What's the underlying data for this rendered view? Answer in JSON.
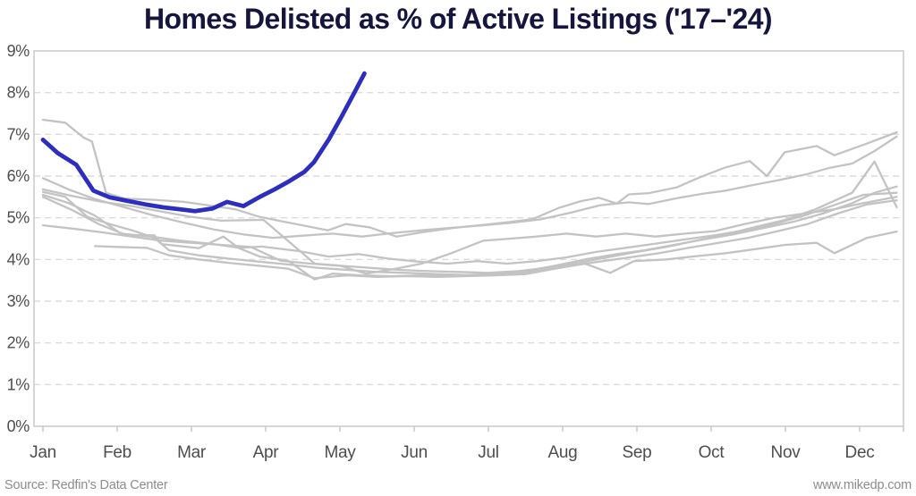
{
  "title": "Homes Delisted as % of Active Listings ('17–'24)",
  "footer": {
    "source": "Source: Redfin's Data Center",
    "website": "www.mikedp.com"
  },
  "colors": {
    "title": "#15153e",
    "highlight_line": "#2d2dbe",
    "context_line": "#c3c3c3",
    "gridline": "#dcdcdc",
    "plot_border": "#c9c9c9",
    "axis_text": "#4d4d4d",
    "tick": "#c9c9c9",
    "footer_text": "#8c8c8c",
    "background": "#ffffff"
  },
  "chart_data": {
    "type": "line",
    "title": "Homes Delisted as % of Active Listings ('17–'24)",
    "xlabel": "",
    "ylabel": "",
    "x_axis": {
      "categories": [
        "Jan",
        "Feb",
        "Mar",
        "Apr",
        "May",
        "Jun",
        "Jul",
        "Aug",
        "Sep",
        "Oct",
        "Nov",
        "Dec"
      ],
      "unit": "month"
    },
    "y_axis": {
      "min": 0,
      "max": 9,
      "tick_labels": [
        "0%",
        "1%",
        "2%",
        "3%",
        "4%",
        "5%",
        "6%",
        "7%",
        "8%",
        "9%"
      ],
      "format": "percent"
    },
    "grid": "horizontal-dashed",
    "legend": "none",
    "series": [
      {
        "name": "gray-line-1",
        "role": "context",
        "points": [
          [
            0,
            7.35
          ],
          [
            0.3,
            7.28
          ],
          [
            0.55,
            6.92
          ],
          [
            0.66,
            6.83
          ],
          [
            0.85,
            5.6
          ],
          [
            1.1,
            5.46
          ],
          [
            1.5,
            5.43
          ],
          [
            1.9,
            5.38
          ],
          [
            2.3,
            5.28
          ],
          [
            2.6,
            5.2
          ],
          [
            2.9,
            5.03
          ],
          [
            3.2,
            4.92
          ],
          [
            3.55,
            4.8
          ],
          [
            3.84,
            4.7
          ],
          [
            4.08,
            4.85
          ],
          [
            4.4,
            4.77
          ],
          [
            4.76,
            4.55
          ],
          [
            5.1,
            4.65
          ],
          [
            5.5,
            4.75
          ],
          [
            5.93,
            4.83
          ],
          [
            6.3,
            4.9
          ],
          [
            6.6,
            4.97
          ],
          [
            6.95,
            5.24
          ],
          [
            7.25,
            5.4
          ],
          [
            7.49,
            5.48
          ],
          [
            7.73,
            5.34
          ],
          [
            7.89,
            5.56
          ],
          [
            8.16,
            5.59
          ],
          [
            8.54,
            5.73
          ],
          [
            8.82,
            5.95
          ],
          [
            9.18,
            6.2
          ],
          [
            9.52,
            6.36
          ],
          [
            9.75,
            6.0
          ],
          [
            9.99,
            6.57
          ],
          [
            10.42,
            6.72
          ],
          [
            10.66,
            6.5
          ],
          [
            11.1,
            6.78
          ],
          [
            11.5,
            7.05
          ]
        ]
      },
      {
        "name": "gray-line-2",
        "role": "context",
        "points": [
          [
            0,
            5.95
          ],
          [
            0.36,
            5.67
          ],
          [
            0.7,
            5.45
          ],
          [
            1.1,
            5.25
          ],
          [
            1.5,
            5.05
          ],
          [
            1.9,
            4.88
          ],
          [
            2.3,
            4.72
          ],
          [
            2.7,
            4.6
          ],
          [
            3.1,
            4.52
          ],
          [
            3.5,
            4.57
          ],
          [
            3.9,
            4.62
          ],
          [
            4.3,
            4.55
          ],
          [
            4.7,
            4.63
          ],
          [
            5.1,
            4.7
          ],
          [
            5.5,
            4.76
          ],
          [
            5.93,
            4.82
          ],
          [
            6.3,
            4.88
          ],
          [
            6.7,
            4.96
          ],
          [
            7.1,
            5.12
          ],
          [
            7.5,
            5.3
          ],
          [
            7.89,
            5.37
          ],
          [
            8.16,
            5.33
          ],
          [
            8.54,
            5.47
          ],
          [
            8.9,
            5.58
          ],
          [
            9.2,
            5.65
          ],
          [
            9.55,
            5.78
          ],
          [
            9.9,
            5.9
          ],
          [
            10.3,
            6.05
          ],
          [
            10.6,
            6.2
          ],
          [
            10.9,
            6.3
          ],
          [
            11.2,
            6.6
          ],
          [
            11.5,
            6.95
          ]
        ]
      },
      {
        "name": "gray-line-3",
        "role": "context",
        "points": [
          [
            0,
            5.68
          ],
          [
            0.4,
            5.52
          ],
          [
            0.8,
            5.38
          ],
          [
            1.2,
            5.28
          ],
          [
            1.6,
            5.15
          ],
          [
            2.0,
            5.02
          ],
          [
            2.4,
            4.93
          ],
          [
            2.97,
            4.95
          ],
          [
            3.66,
            3.9
          ],
          [
            4.0,
            3.85
          ],
          [
            4.4,
            3.8
          ],
          [
            4.8,
            3.75
          ],
          [
            5.2,
            3.72
          ],
          [
            5.6,
            3.7
          ],
          [
            6.0,
            3.68
          ],
          [
            6.4,
            3.72
          ],
          [
            6.8,
            3.8
          ],
          [
            7.2,
            3.92
          ],
          [
            7.6,
            4.05
          ],
          [
            8.0,
            4.18
          ],
          [
            8.4,
            4.3
          ],
          [
            8.8,
            4.45
          ],
          [
            9.2,
            4.6
          ],
          [
            9.6,
            4.78
          ],
          [
            10.0,
            4.95
          ],
          [
            10.4,
            5.2
          ],
          [
            10.9,
            5.6
          ],
          [
            11.2,
            6.35
          ],
          [
            11.5,
            5.25
          ]
        ]
      },
      {
        "name": "gray-line-4",
        "role": "context",
        "points": [
          [
            0,
            5.55
          ],
          [
            0.35,
            5.35
          ],
          [
            0.7,
            5.05
          ],
          [
            1.05,
            4.62
          ],
          [
            1.45,
            4.55
          ],
          [
            1.85,
            4.45
          ],
          [
            2.25,
            4.38
          ],
          [
            2.65,
            4.28
          ],
          [
            2.95,
            4.31
          ],
          [
            3.45,
            4.2
          ],
          [
            3.85,
            4.07
          ],
          [
            4.25,
            4.13
          ],
          [
            4.65,
            4.02
          ],
          [
            5.05,
            3.95
          ],
          [
            5.45,
            3.9
          ],
          [
            5.85,
            3.96
          ],
          [
            6.25,
            3.9
          ],
          [
            6.65,
            3.96
          ],
          [
            7.05,
            4.05
          ],
          [
            7.45,
            4.18
          ],
          [
            7.85,
            4.28
          ],
          [
            8.25,
            4.38
          ],
          [
            8.65,
            4.48
          ],
          [
            9.05,
            4.58
          ],
          [
            9.45,
            4.7
          ],
          [
            9.85,
            4.85
          ],
          [
            10.25,
            5.05
          ],
          [
            10.65,
            5.3
          ],
          [
            11.05,
            5.55
          ],
          [
            11.5,
            5.6
          ]
        ]
      },
      {
        "name": "gray-line-5",
        "role": "context",
        "points": [
          [
            0,
            5.5
          ],
          [
            0.4,
            5.18
          ],
          [
            0.75,
            4.85
          ],
          [
            1.13,
            4.58
          ],
          [
            1.5,
            4.58
          ],
          [
            1.6,
            4.37
          ],
          [
            2.1,
            4.27
          ],
          [
            2.43,
            4.55
          ],
          [
            2.64,
            4.27
          ],
          [
            2.92,
            4.07
          ],
          [
            3.3,
            3.97
          ],
          [
            3.66,
            3.52
          ],
          [
            3.9,
            3.66
          ],
          [
            4.3,
            3.62
          ],
          [
            4.7,
            3.6
          ],
          [
            5.1,
            3.62
          ],
          [
            5.5,
            3.6
          ],
          [
            5.9,
            3.63
          ],
          [
            6.3,
            3.66
          ],
          [
            6.7,
            3.73
          ],
          [
            7.1,
            3.85
          ],
          [
            7.5,
            3.95
          ],
          [
            7.9,
            4.05
          ],
          [
            8.3,
            4.15
          ],
          [
            8.7,
            4.28
          ],
          [
            9.1,
            4.4
          ],
          [
            9.5,
            4.52
          ],
          [
            9.9,
            4.68
          ],
          [
            10.3,
            4.85
          ],
          [
            10.7,
            5.1
          ],
          [
            11.1,
            5.32
          ],
          [
            11.5,
            5.42
          ]
        ]
      },
      {
        "name": "gray-line-6",
        "role": "context",
        "points": [
          [
            0,
            4.82
          ],
          [
            0.4,
            4.74
          ],
          [
            0.8,
            4.65
          ],
          [
            1.2,
            4.55
          ],
          [
            1.6,
            4.45
          ],
          [
            2.0,
            4.4
          ],
          [
            2.4,
            4.35
          ],
          [
            2.8,
            4.3
          ],
          [
            3.2,
            3.97
          ],
          [
            3.6,
            3.9
          ],
          [
            4.0,
            3.85
          ],
          [
            4.35,
            3.66
          ],
          [
            4.7,
            3.76
          ],
          [
            5.1,
            3.9
          ],
          [
            5.5,
            4.15
          ],
          [
            5.93,
            4.45
          ],
          [
            6.3,
            4.5
          ],
          [
            6.65,
            4.55
          ],
          [
            7.05,
            4.62
          ],
          [
            7.45,
            4.55
          ],
          [
            7.85,
            4.62
          ],
          [
            8.25,
            4.55
          ],
          [
            8.65,
            4.62
          ],
          [
            9.05,
            4.68
          ],
          [
            9.45,
            4.85
          ],
          [
            9.85,
            5.0
          ],
          [
            10.25,
            5.1
          ],
          [
            10.65,
            5.2
          ],
          [
            11.05,
            5.35
          ],
          [
            11.5,
            5.5
          ]
        ]
      },
      {
        "name": "gray-line-7",
        "role": "context",
        "points": [
          [
            0.7,
            4.32
          ],
          [
            1.0,
            4.3
          ],
          [
            1.4,
            4.28
          ],
          [
            1.7,
            4.1
          ],
          [
            2.1,
            4.0
          ],
          [
            2.5,
            3.92
          ],
          [
            2.9,
            3.85
          ],
          [
            3.3,
            3.78
          ],
          [
            3.66,
            3.55
          ],
          [
            4.1,
            3.62
          ],
          [
            4.5,
            3.58
          ],
          [
            4.9,
            3.6
          ],
          [
            5.3,
            3.58
          ],
          [
            5.7,
            3.6
          ],
          [
            6.1,
            3.62
          ],
          [
            6.5,
            3.65
          ],
          [
            6.9,
            3.78
          ],
          [
            7.3,
            3.9
          ],
          [
            7.64,
            3.68
          ],
          [
            7.96,
            3.96
          ],
          [
            8.4,
            4.0
          ],
          [
            8.8,
            4.08
          ],
          [
            9.2,
            4.15
          ],
          [
            9.6,
            4.25
          ],
          [
            10.0,
            4.35
          ],
          [
            10.42,
            4.4
          ],
          [
            10.66,
            4.15
          ],
          [
            11.1,
            4.52
          ],
          [
            11.5,
            4.67
          ]
        ]
      },
      {
        "name": "gray-line-8",
        "role": "context",
        "points": [
          [
            0,
            5.62
          ],
          [
            0.3,
            5.5
          ],
          [
            0.6,
            5.02
          ],
          [
            0.9,
            4.85
          ],
          [
            1.2,
            4.7
          ],
          [
            1.5,
            4.52
          ],
          [
            1.7,
            4.22
          ],
          [
            2.1,
            4.1
          ],
          [
            2.5,
            4.02
          ],
          [
            2.9,
            3.95
          ],
          [
            3.3,
            3.88
          ],
          [
            3.7,
            3.8
          ],
          [
            4.1,
            3.75
          ],
          [
            4.5,
            3.7
          ],
          [
            4.9,
            3.68
          ],
          [
            5.3,
            3.65
          ],
          [
            5.7,
            3.63
          ],
          [
            6.1,
            3.65
          ],
          [
            6.5,
            3.72
          ],
          [
            6.9,
            3.85
          ],
          [
            7.3,
            4.0
          ],
          [
            7.7,
            4.12
          ],
          [
            8.1,
            4.22
          ],
          [
            8.5,
            4.35
          ],
          [
            8.9,
            4.48
          ],
          [
            9.3,
            4.6
          ],
          [
            9.7,
            4.75
          ],
          [
            10.1,
            4.9
          ],
          [
            10.5,
            5.1
          ],
          [
            10.9,
            5.35
          ],
          [
            11.2,
            5.6
          ],
          [
            11.5,
            5.75
          ]
        ]
      },
      {
        "name": "highlight-line",
        "role": "highlight",
        "points": [
          [
            0,
            6.87
          ],
          [
            0.2,
            6.55
          ],
          [
            0.45,
            6.27
          ],
          [
            0.68,
            5.65
          ],
          [
            0.9,
            5.49
          ],
          [
            1.12,
            5.41
          ],
          [
            1.38,
            5.32
          ],
          [
            1.62,
            5.25
          ],
          [
            1.85,
            5.2
          ],
          [
            2.05,
            5.16
          ],
          [
            2.28,
            5.22
          ],
          [
            2.48,
            5.38
          ],
          [
            2.7,
            5.28
          ],
          [
            2.92,
            5.5
          ],
          [
            3.12,
            5.68
          ],
          [
            3.32,
            5.88
          ],
          [
            3.52,
            6.1
          ],
          [
            3.65,
            6.33
          ],
          [
            3.85,
            6.88
          ],
          [
            4.02,
            7.42
          ],
          [
            4.18,
            7.95
          ],
          [
            4.33,
            8.46
          ]
        ]
      }
    ]
  }
}
